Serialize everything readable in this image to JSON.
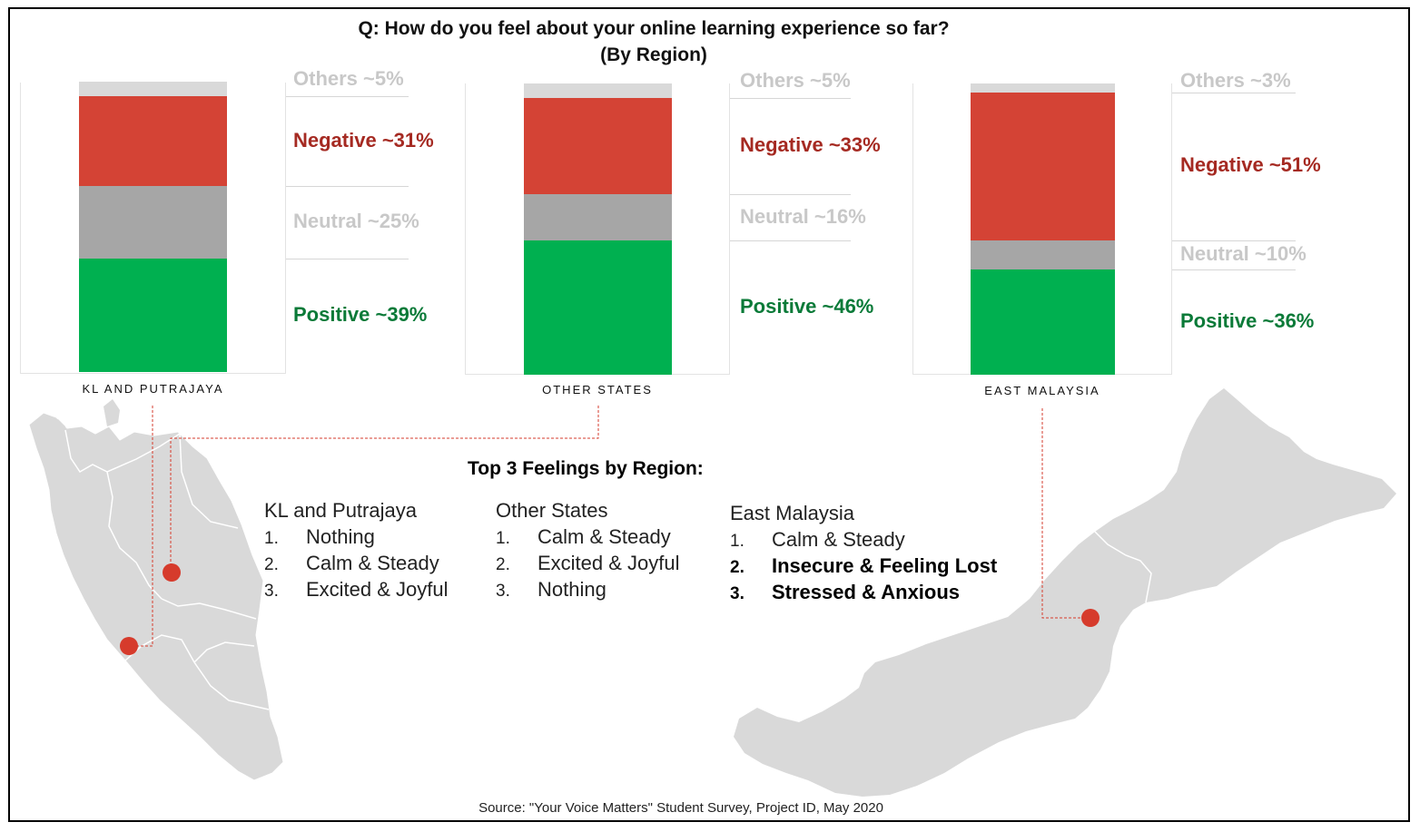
{
  "title": {
    "line1": "Q: How do you feel about your online learning experience so far?",
    "line2": "(By Region)"
  },
  "colors": {
    "positive": "#00b050",
    "neutral": "#a6a6a6",
    "negative": "#d44335",
    "others": "#d9d9d9",
    "negative_label": "#a52a22",
    "positive_label": "#0a7a38",
    "muted_label": "#c8c8c8",
    "dot": "#d63b2c",
    "map": "#d9d9d9"
  },
  "chart_data": [
    {
      "type": "bar",
      "region": "KL AND PUTRAJAYA",
      "stacked": true,
      "series": [
        {
          "name": "Positive",
          "value": 39,
          "label": "Positive ~39%"
        },
        {
          "name": "Neutral",
          "value": 25,
          "label": "Neutral ~25%"
        },
        {
          "name": "Negative",
          "value": 31,
          "label": "Negative ~31%"
        },
        {
          "name": "Others",
          "value": 5,
          "label": "Others ~5%"
        }
      ]
    },
    {
      "type": "bar",
      "region": "OTHER STATES",
      "stacked": true,
      "series": [
        {
          "name": "Positive",
          "value": 46,
          "label": "Positive ~46%"
        },
        {
          "name": "Neutral",
          "value": 16,
          "label": "Neutral ~16%"
        },
        {
          "name": "Negative",
          "value": 33,
          "label": "Negative ~33%"
        },
        {
          "name": "Others",
          "value": 5,
          "label": "Others ~5%"
        }
      ]
    },
    {
      "type": "bar",
      "region": "EAST MALAYSIA",
      "stacked": true,
      "series": [
        {
          "name": "Positive",
          "value": 36,
          "label": "Positive ~36%"
        },
        {
          "name": "Neutral",
          "value": 10,
          "label": "Neutral ~10%"
        },
        {
          "name": "Negative",
          "value": 51,
          "label": "Negative ~51%"
        },
        {
          "name": "Others",
          "value": 3,
          "label": "Others ~3%"
        }
      ]
    }
  ],
  "top3": {
    "heading": "Top 3 Feelings by Region:",
    "columns": [
      {
        "region": "KL and Putrajaya",
        "items": [
          {
            "num": "1.",
            "text": "Nothing"
          },
          {
            "num": "2.",
            "text": "Calm & Steady"
          },
          {
            "num": "3.",
            "text": "Excited & Joyful"
          }
        ]
      },
      {
        "region": "Other States",
        "items": [
          {
            "num": "1.",
            "text": "Calm & Steady"
          },
          {
            "num": "2.",
            "text": "Excited & Joyful"
          },
          {
            "num": "3.",
            "text": "Nothing"
          }
        ]
      },
      {
        "region": "East Malaysia",
        "items": [
          {
            "num": "1.",
            "text": "Calm & Steady"
          },
          {
            "num": "2.",
            "text": "Insecure & Feeling Lost"
          },
          {
            "num": "3.",
            "text": "Stressed & Anxious"
          }
        ]
      }
    ]
  },
  "source": "Source: \"Your Voice Matters\" Student Survey, Project ID, May 2020"
}
